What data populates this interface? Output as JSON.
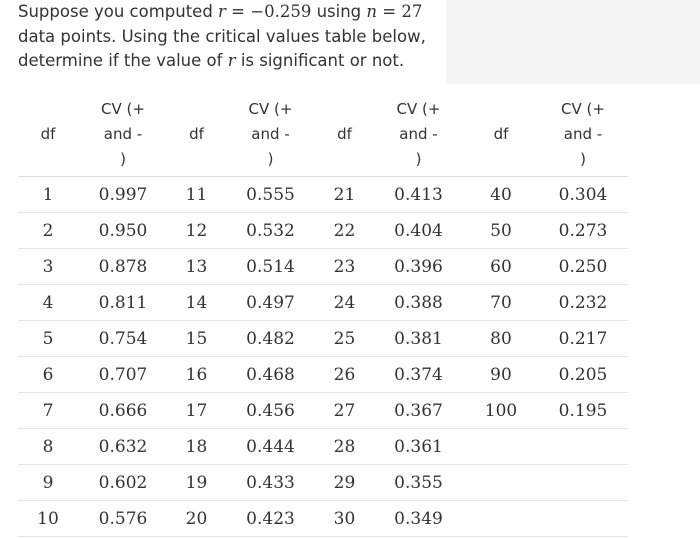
{
  "question": {
    "line1_a": "Suppose you computed ",
    "r_var": "r",
    "equals": " = ",
    "r_value": "−0.259",
    "line1_b": " using ",
    "n_var": "n",
    "n_value": "27",
    "line2": "data points. Using the critical values table below,",
    "line3_a": "determine if the value of ",
    "line3_b": " is significant or not."
  },
  "table": {
    "headers": {
      "df": "df",
      "cv_line1": "CV (+",
      "cv_line2": "and -",
      "cv_line3": ")"
    },
    "rows": [
      [
        "1",
        "0.997",
        "11",
        "0.555",
        "21",
        "0.413",
        "40",
        "0.304"
      ],
      [
        "2",
        "0.950",
        "12",
        "0.532",
        "22",
        "0.404",
        "50",
        "0.273"
      ],
      [
        "3",
        "0.878",
        "13",
        "0.514",
        "23",
        "0.396",
        "60",
        "0.250"
      ],
      [
        "4",
        "0.811",
        "14",
        "0.497",
        "24",
        "0.388",
        "70",
        "0.232"
      ],
      [
        "5",
        "0.754",
        "15",
        "0.482",
        "25",
        "0.381",
        "80",
        "0.217"
      ],
      [
        "6",
        "0.707",
        "16",
        "0.468",
        "26",
        "0.374",
        "90",
        "0.205"
      ],
      [
        "7",
        "0.666",
        "17",
        "0.456",
        "27",
        "0.367",
        "100",
        "0.195"
      ],
      [
        "8",
        "0.632",
        "18",
        "0.444",
        "28",
        "0.361",
        "",
        ""
      ],
      [
        "9",
        "0.602",
        "19",
        "0.433",
        "29",
        "0.355",
        "",
        ""
      ],
      [
        "10",
        "0.576",
        "20",
        "0.423",
        "30",
        "0.349",
        "",
        ""
      ]
    ]
  }
}
